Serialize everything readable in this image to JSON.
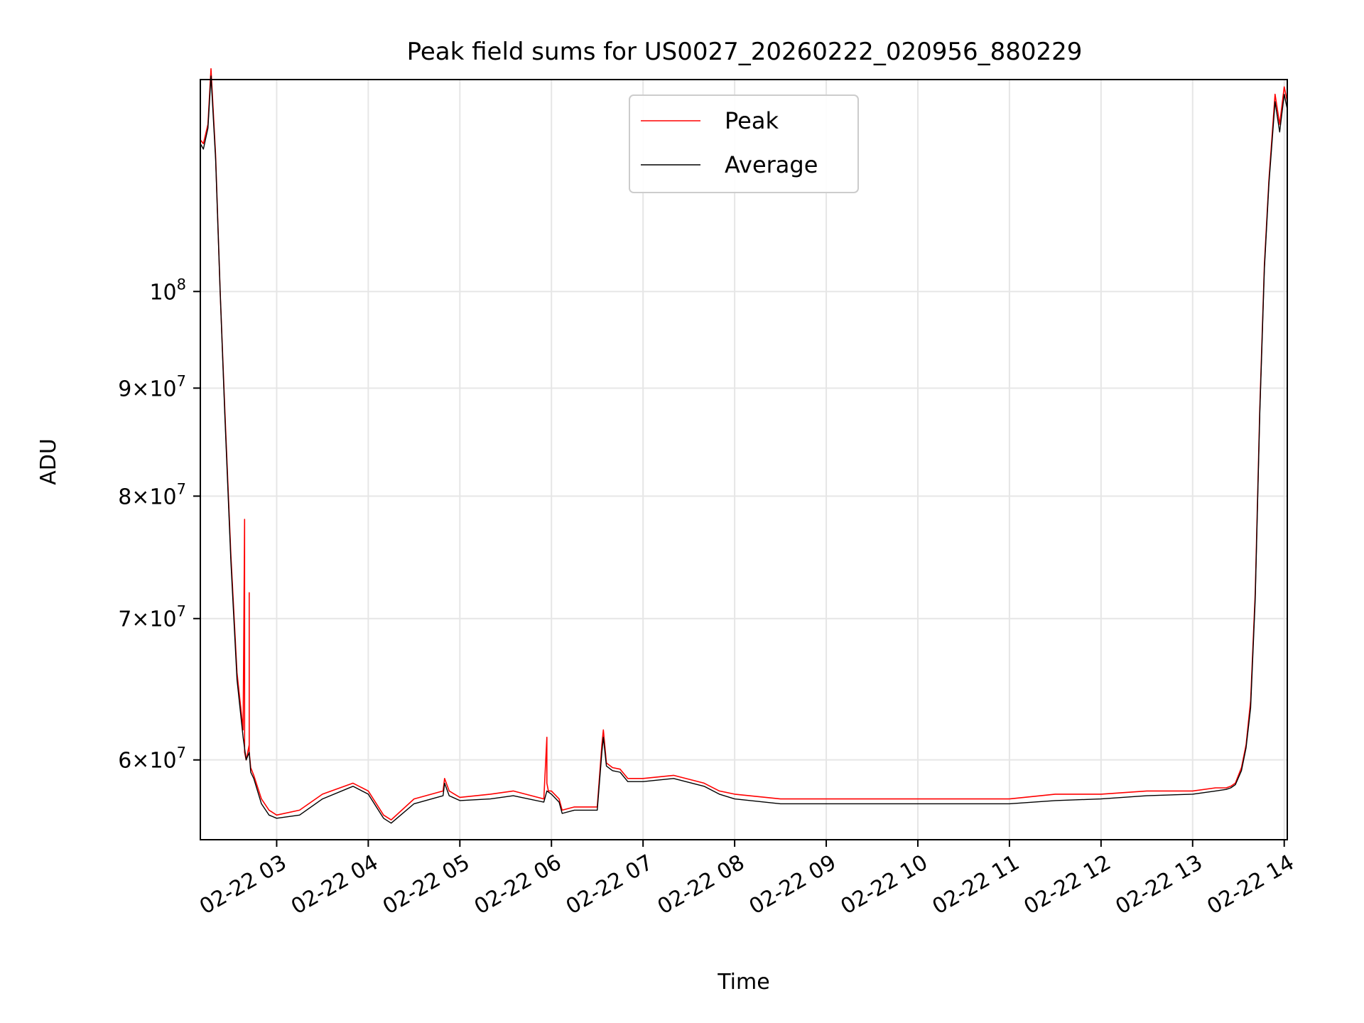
{
  "chart_data": {
    "type": "line",
    "title": "Peak field sums for US0027_20260222_020956_880229",
    "xlabel": "Time",
    "ylabel": "ADU",
    "x_scale": "time",
    "y_scale": "log",
    "xlim": [
      "2026-02-22 02:10",
      "2026-02-22 14:02"
    ],
    "ylim": [
      55000000,
      126000000
    ],
    "grid": true,
    "legend_position": "top-center",
    "x_tick_labels": [
      "02-22 03",
      "02-22 04",
      "02-22 05",
      "02-22 06",
      "02-22 07",
      "02-22 08",
      "02-22 09",
      "02-22 10",
      "02-22 11",
      "02-22 12",
      "02-22 13",
      "02-22 14"
    ],
    "x_ticks": [
      "2026-02-22 03:00",
      "2026-02-22 04:00",
      "2026-02-22 05:00",
      "2026-02-22 06:00",
      "2026-02-22 07:00",
      "2026-02-22 08:00",
      "2026-02-22 09:00",
      "2026-02-22 10:00",
      "2026-02-22 11:00",
      "2026-02-22 12:00",
      "2026-02-22 13:00",
      "2026-02-22 14:00"
    ],
    "y_ticks": [
      {
        "value": 60000000,
        "mantissa": "6",
        "exp": "7"
      },
      {
        "value": 70000000,
        "mantissa": "7",
        "exp": "7"
      },
      {
        "value": 80000000,
        "mantissa": "8",
        "exp": "7"
      },
      {
        "value": 90000000,
        "mantissa": "9",
        "exp": "7"
      },
      {
        "value": 100000000,
        "mantissa": "",
        "exp": "8"
      }
    ],
    "series": [
      {
        "name": "Peak",
        "color": "#ff0000",
        "x": [
          "02:10",
          "02:12",
          "02:15",
          "02:17",
          "02:20",
          "02:23",
          "02:26",
          "02:30",
          "02:34",
          "02:38",
          "02:39",
          "02:39",
          "02:40",
          "02:42",
          "02:42",
          "02:42",
          "02:43",
          "02:45",
          "02:50",
          "02:55",
          "03:00",
          "03:15",
          "03:30",
          "03:50",
          "04:00",
          "04:10",
          "04:15",
          "04:30",
          "04:49",
          "04:50",
          "04:53",
          "05:00",
          "05:20",
          "05:35",
          "05:55",
          "05:57",
          "05:57",
          "05:58",
          "06:00",
          "06:05",
          "06:07",
          "06:15",
          "06:25",
          "06:30",
          "06:33",
          "06:34",
          "06:36",
          "06:40",
          "06:45",
          "06:50",
          "07:00",
          "07:20",
          "07:40",
          "07:50",
          "08:00",
          "08:30",
          "09:00",
          "09:30",
          "10:00",
          "10:30",
          "11:00",
          "11:30",
          "12:00",
          "12:30",
          "13:00",
          "13:15",
          "13:22",
          "13:25",
          "13:28",
          "13:32",
          "13:35",
          "13:38",
          "13:41",
          "13:44",
          "13:47",
          "13:50",
          "13:54",
          "13:57",
          "14:00",
          "14:02"
        ],
        "y": [
          118000000,
          117500000,
          120000000,
          127500000,
          116000000,
          100000000,
          88000000,
          75000000,
          66000000,
          62000000,
          78000000,
          60500000,
          60000000,
          61000000,
          72000000,
          60500000,
          59500000,
          59000000,
          57500000,
          56800000,
          56500000,
          56800000,
          57800000,
          58500000,
          58000000,
          56500000,
          56200000,
          57500000,
          58000000,
          58800000,
          58000000,
          57600000,
          57800000,
          58000000,
          57500000,
          61500000,
          58500000,
          58000000,
          58000000,
          57500000,
          56800000,
          57000000,
          57000000,
          57000000,
          61000000,
          62000000,
          59800000,
          59500000,
          59400000,
          58800000,
          58800000,
          59000000,
          58500000,
          58000000,
          57800000,
          57500000,
          57500000,
          57500000,
          57500000,
          57500000,
          57500000,
          57800000,
          57800000,
          58000000,
          58000000,
          58200000,
          58200000,
          58300000,
          58500000,
          59500000,
          61000000,
          64000000,
          72000000,
          88000000,
          103000000,
          113000000,
          124000000,
          120000000,
          125000000,
          123000000
        ]
      },
      {
        "name": "Average",
        "color": "#000000",
        "x": [
          "02:10",
          "02:12",
          "02:15",
          "02:17",
          "02:20",
          "02:23",
          "02:26",
          "02:30",
          "02:34",
          "02:38",
          "02:40",
          "02:42",
          "02:43",
          "02:45",
          "02:50",
          "02:55",
          "03:00",
          "03:15",
          "03:30",
          "03:50",
          "04:00",
          "04:10",
          "04:15",
          "04:30",
          "04:49",
          "04:50",
          "04:53",
          "05:00",
          "05:20",
          "05:35",
          "05:55",
          "05:57",
          "06:00",
          "06:05",
          "06:07",
          "06:15",
          "06:25",
          "06:30",
          "06:33",
          "06:34",
          "06:36",
          "06:40",
          "06:45",
          "06:50",
          "07:00",
          "07:20",
          "07:40",
          "07:50",
          "08:00",
          "08:30",
          "09:00",
          "09:30",
          "10:00",
          "10:30",
          "11:00",
          "11:30",
          "12:00",
          "12:30",
          "13:00",
          "13:15",
          "13:22",
          "13:25",
          "13:28",
          "13:32",
          "13:35",
          "13:38",
          "13:41",
          "13:44",
          "13:47",
          "13:50",
          "13:54",
          "13:57",
          "14:00",
          "14:02"
        ],
        "y": [
          117500000,
          116800000,
          119500000,
          126500000,
          115500000,
          100000000,
          87500000,
          74500000,
          65500000,
          61500000,
          60000000,
          60500000,
          59200000,
          58800000,
          57200000,
          56500000,
          56300000,
          56500000,
          57500000,
          58300000,
          57800000,
          56300000,
          56000000,
          57200000,
          57700000,
          58500000,
          57700000,
          57400000,
          57500000,
          57700000,
          57300000,
          58000000,
          57800000,
          57300000,
          56600000,
          56800000,
          56800000,
          56800000,
          60500000,
          61500000,
          59600000,
          59300000,
          59200000,
          58600000,
          58600000,
          58800000,
          58300000,
          57800000,
          57500000,
          57200000,
          57200000,
          57200000,
          57200000,
          57200000,
          57200000,
          57400000,
          57500000,
          57700000,
          57800000,
          58000000,
          58100000,
          58200000,
          58400000,
          59300000,
          60800000,
          63500000,
          71500000,
          87500000,
          102500000,
          112500000,
          123000000,
          119000000,
          124000000,
          122000000
        ]
      }
    ]
  }
}
